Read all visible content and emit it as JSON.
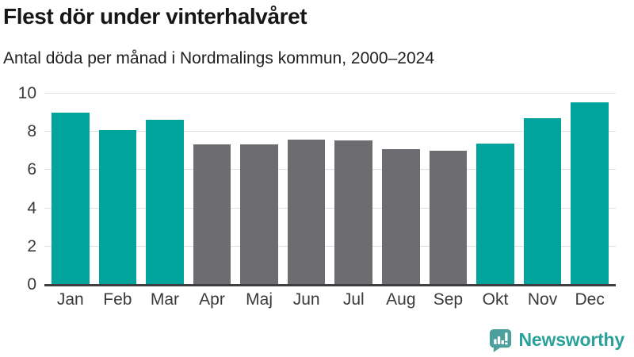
{
  "title": "Flest dör under vinterhalvåret",
  "subtitle": "Antal döda per månad i Nordmalings kommun, 2000–2024",
  "footer": {
    "brand": "Newsworthy",
    "logo_icon": "bar-chart-speech-bubble-icon"
  },
  "colors": {
    "winter_bar": "#00a49c",
    "summer_bar": "#6d6d71",
    "gridline": "#e0e0e0",
    "axis_line": "#3f3f3f",
    "title_text": "#161616",
    "tick_text": "#3a3a3a",
    "logo_text": "#2ba19c",
    "logo_icon": "#4c9f9b"
  },
  "chart_data": {
    "type": "bar",
    "categories": [
      "Jan",
      "Feb",
      "Mar",
      "Apr",
      "Maj",
      "Jun",
      "Jul",
      "Aug",
      "Sep",
      "Okt",
      "Nov",
      "Dec"
    ],
    "values": [
      9.0,
      8.1,
      8.65,
      7.35,
      7.35,
      7.6,
      7.55,
      7.1,
      7.0,
      7.4,
      8.7,
      9.55
    ],
    "bar_color_groups": [
      "winter",
      "winter",
      "winter",
      "summer",
      "summer",
      "summer",
      "summer",
      "summer",
      "summer",
      "winter",
      "winter",
      "winter"
    ],
    "title": "Flest dör under vinterhalvåret",
    "subtitle": "Antal döda per månad i Nordmalings kommun, 2000–2024",
    "xlabel": "",
    "ylabel": "",
    "ylim": [
      0,
      10
    ],
    "yticks": [
      0,
      2,
      4,
      6,
      8,
      10
    ],
    "gridline_values": [
      2,
      4,
      6,
      8,
      10
    ],
    "grid": "horizontal",
    "legend": "none"
  }
}
